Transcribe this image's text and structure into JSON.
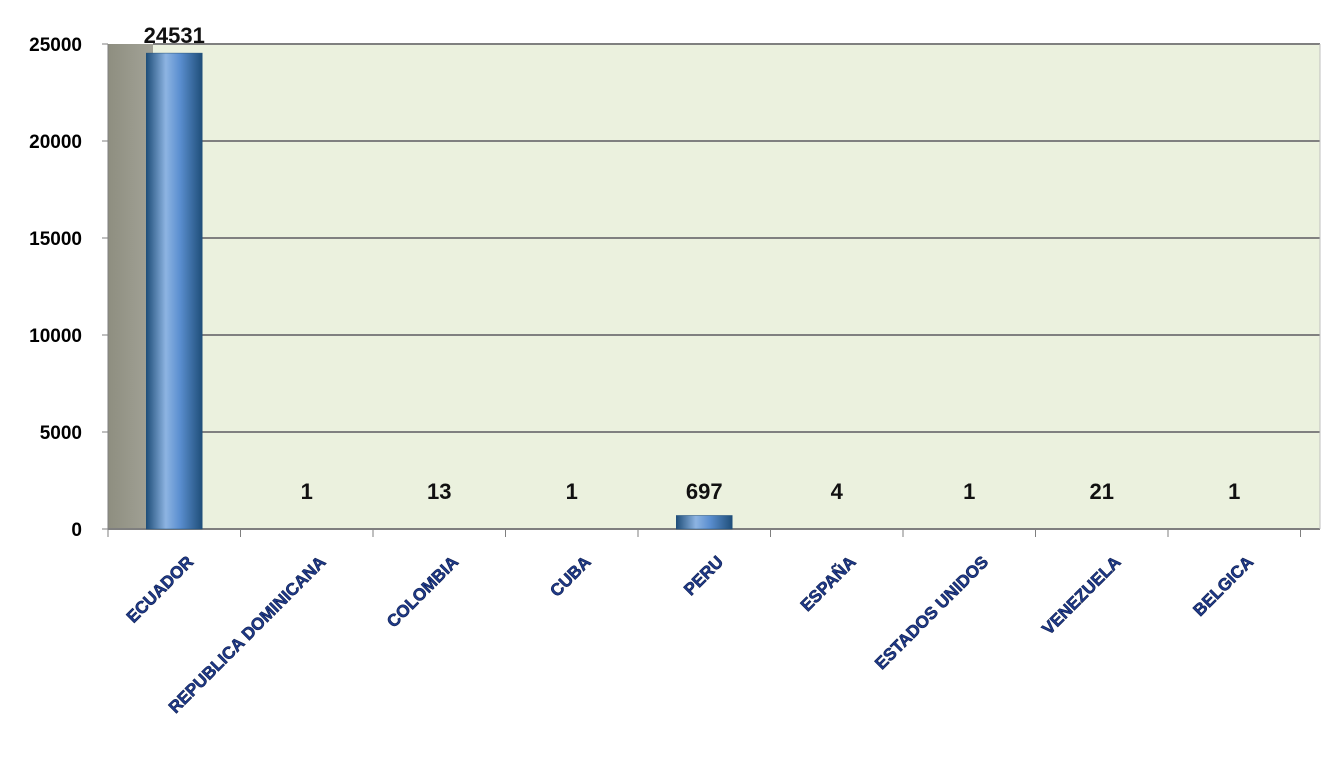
{
  "chart_data": {
    "type": "bar",
    "title": "",
    "xlabel": "",
    "ylabel": "",
    "categories": [
      "ECUADOR",
      "REPUBLICA DOMINICANA",
      "COLOMBIA",
      "CUBA",
      "PERU",
      "ESPAÑA",
      "ESTADOS UNIDOS",
      "VENEZUELA",
      "BELGICA"
    ],
    "values": [
      24531,
      1,
      13,
      1,
      697,
      4,
      1,
      21,
      1
    ],
    "data_labels": [
      "24531",
      "1",
      "13",
      "1",
      "697",
      "4",
      "1",
      "21",
      "1"
    ],
    "ylim": [
      0,
      25000
    ],
    "yticks": [
      0,
      5000,
      10000,
      15000,
      20000,
      25000
    ],
    "ytick_labels": [
      "0",
      "5000",
      "10000",
      "15000",
      "20000",
      "25000"
    ],
    "grid": true,
    "legend": "none",
    "colors": {
      "plot_background": "#EBF1DE",
      "back_wall": "#9A9A8C",
      "bar": "#4F81BD",
      "bar_highlight": "#8DB4E2",
      "bar_shadow": "#1F4E79",
      "gridline": "#808080",
      "category_label": "#1F3A8A"
    }
  }
}
